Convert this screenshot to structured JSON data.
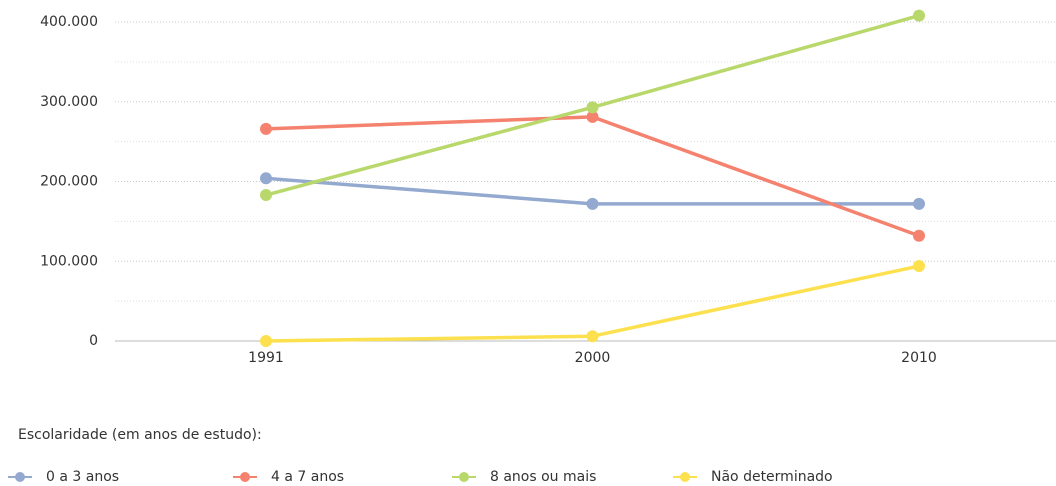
{
  "chart_data": {
    "type": "line",
    "categories": [
      "1991",
      "2000",
      "2010"
    ],
    "series": [
      {
        "name": "0 a 3 anos",
        "color": "#93a9cf",
        "values": [
          204000,
          172000,
          172000
        ]
      },
      {
        "name": "4 a 7 anos",
        "color": "#f4826f",
        "values": [
          266000,
          281000,
          132000
        ]
      },
      {
        "name": "8 anos ou mais",
        "color": "#b8d86b",
        "values": [
          183000,
          293000,
          408000
        ]
      },
      {
        "name": "Não determinado",
        "color": "#fde04e",
        "values": [
          0,
          6000,
          94000
        ]
      }
    ],
    "ylim": [
      0,
      400000
    ],
    "yticks": [
      {
        "value": 0,
        "label": "0"
      },
      {
        "value": 100000,
        "label": "100.000"
      },
      {
        "value": 200000,
        "label": "200.000"
      },
      {
        "value": 300000,
        "label": "300.000"
      },
      {
        "value": 400000,
        "label": "400.000"
      }
    ],
    "minor_yticks": [
      50000,
      150000,
      250000,
      350000
    ],
    "grid": true,
    "legend_title": "Escolaridade (em anos de estudo):",
    "legend_position": "bottom"
  }
}
